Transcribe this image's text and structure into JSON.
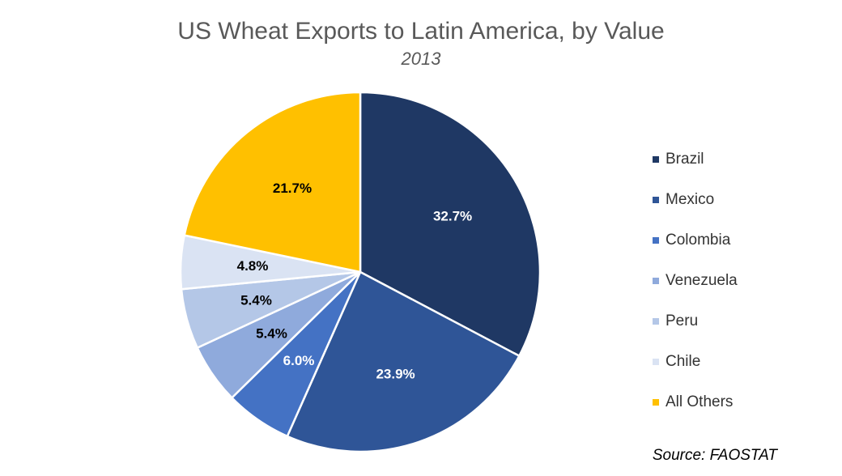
{
  "chart_data": {
    "type": "pie",
    "title": "US Wheat Exports to Latin America, by Value",
    "subtitle": "2013",
    "categories": [
      "Brazil",
      "Mexico",
      "Colombia",
      "Venezuela",
      "Peru",
      "Chile",
      "All Others"
    ],
    "values": [
      32.7,
      23.9,
      6.0,
      5.4,
      5.4,
      4.8,
      21.7
    ],
    "labels": [
      "32.7%",
      "23.9%",
      "6.0%",
      "5.4%",
      "5.4%",
      "4.8%",
      "21.7%"
    ],
    "colors": [
      "#1f3864",
      "#2f5597",
      "#4472c4",
      "#8faadc",
      "#b4c7e7",
      "#dae3f3",
      "#ffc000"
    ],
    "label_colors": [
      "#ffffff",
      "#ffffff",
      "#ffffff",
      "#000000",
      "#000000",
      "#000000",
      "#000000"
    ],
    "legend_placement": "right",
    "source": "Source: FAOSTAT"
  }
}
